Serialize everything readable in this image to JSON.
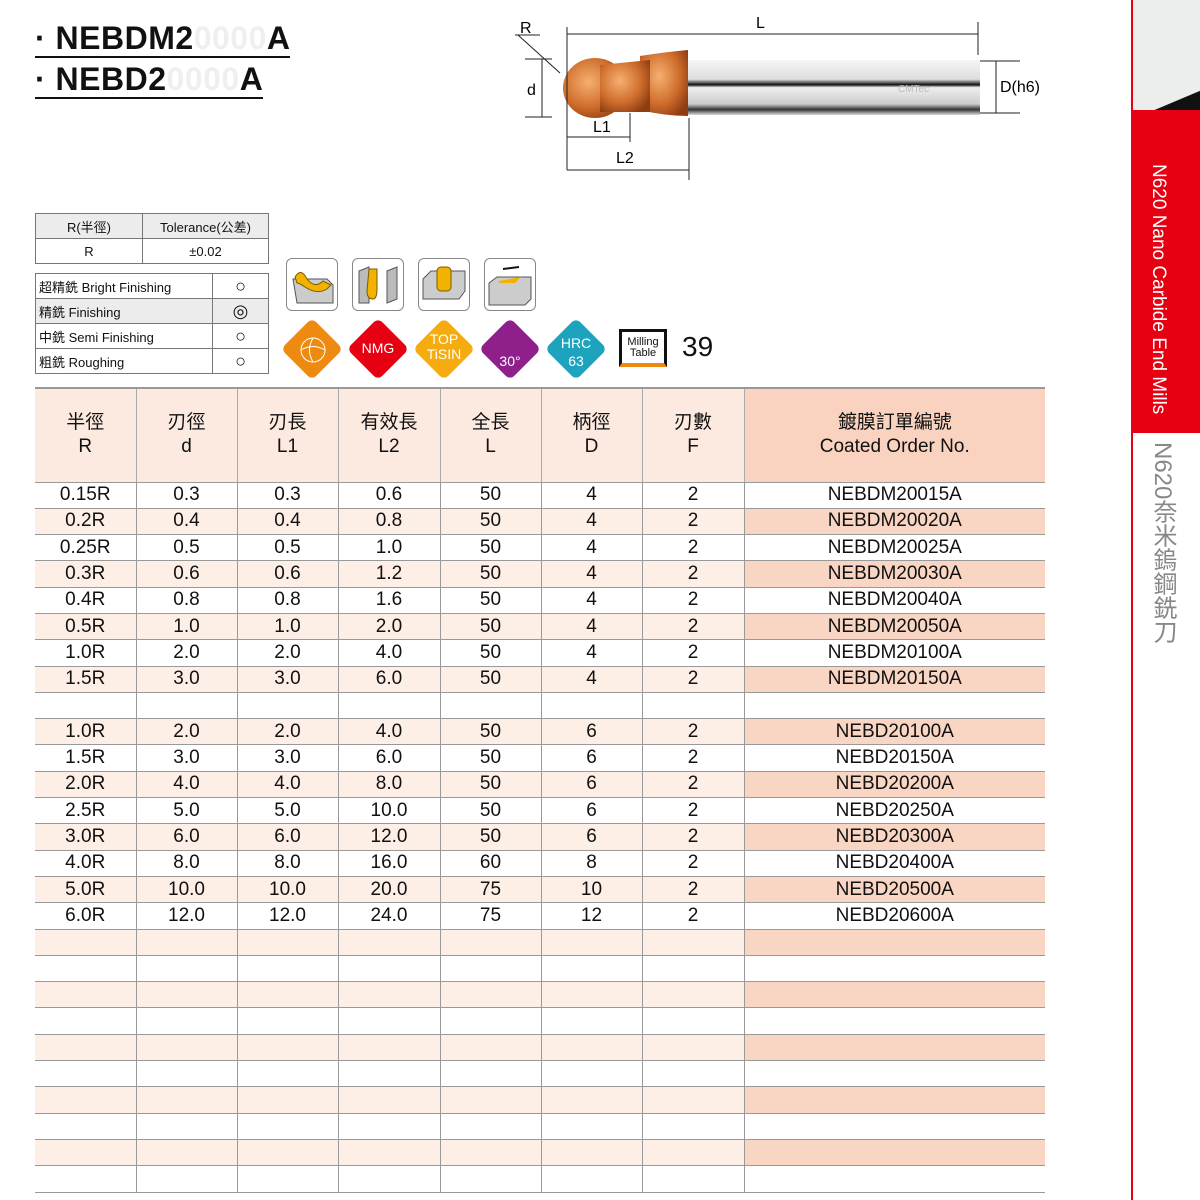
{
  "titles": [
    {
      "prefix": "· NEBDM2",
      "ghost": "0000",
      "suffix": "A"
    },
    {
      "prefix": "· NEBD2",
      "ghost": "0000",
      "suffix": "A"
    }
  ],
  "diagram": {
    "R": "R",
    "L": "L",
    "d": "d",
    "D": "D(h6)",
    "L1": "L1",
    "L2": "L2",
    "brand": "CMTec"
  },
  "tolerance": {
    "headers": [
      "R(半徑)",
      "Tolerance(公差)"
    ],
    "row": [
      "R",
      "±0.02"
    ]
  },
  "finishing": [
    {
      "label": "超精銑 Bright Finishing",
      "symbol": "○",
      "selected": false
    },
    {
      "label": "精銑 Finishing",
      "symbol": "◎",
      "selected": true
    },
    {
      "label": "中銑 Semi Finishing",
      "symbol": "○",
      "selected": false
    },
    {
      "label": "粗銑 Roughing",
      "symbol": "○",
      "selected": false
    }
  ],
  "badges": {
    "nmg": "NMG",
    "coating": [
      "TOP",
      "TiSIN"
    ],
    "helix": "30°",
    "hrc": [
      "HRC",
      "63"
    ],
    "milling": [
      "Milling",
      "Table"
    ],
    "colors": {
      "orange": "#ee8a10",
      "red": "#e60012",
      "yellow": "#f6ac10",
      "purple": "#8f1f8a",
      "teal": "#1ea3bf"
    }
  },
  "page_number": "39",
  "table": {
    "headers": [
      [
        "半徑",
        "R"
      ],
      [
        "刃徑",
        "d"
      ],
      [
        "刃長",
        "L1"
      ],
      [
        "有效長",
        "L2"
      ],
      [
        "全長",
        "L"
      ],
      [
        "柄徑",
        "D"
      ],
      [
        "刃數",
        "F"
      ],
      [
        "鍍膜訂單編號",
        "Coated Order No."
      ]
    ],
    "rows": [
      [
        "0.15R",
        "0.3",
        "0.3",
        "0.6",
        "50",
        "4",
        "2",
        "NEBDM20015A"
      ],
      [
        "0.2R",
        "0.4",
        "0.4",
        "0.8",
        "50",
        "4",
        "2",
        "NEBDM20020A"
      ],
      [
        "0.25R",
        "0.5",
        "0.5",
        "1.0",
        "50",
        "4",
        "2",
        "NEBDM20025A"
      ],
      [
        "0.3R",
        "0.6",
        "0.6",
        "1.2",
        "50",
        "4",
        "2",
        "NEBDM20030A"
      ],
      [
        "0.4R",
        "0.8",
        "0.8",
        "1.6",
        "50",
        "4",
        "2",
        "NEBDM20040A"
      ],
      [
        "0.5R",
        "1.0",
        "1.0",
        "2.0",
        "50",
        "4",
        "2",
        "NEBDM20050A"
      ],
      [
        "1.0R",
        "2.0",
        "2.0",
        "4.0",
        "50",
        "4",
        "2",
        "NEBDM20100A"
      ],
      [
        "1.5R",
        "3.0",
        "3.0",
        "6.0",
        "50",
        "4",
        "2",
        "NEBDM20150A"
      ],
      [
        "",
        "",
        "",
        "",
        "",
        "",
        "",
        ""
      ],
      [
        "1.0R",
        "2.0",
        "2.0",
        "4.0",
        "50",
        "6",
        "2",
        "NEBD20100A"
      ],
      [
        "1.5R",
        "3.0",
        "3.0",
        "6.0",
        "50",
        "6",
        "2",
        "NEBD20150A"
      ],
      [
        "2.0R",
        "4.0",
        "4.0",
        "8.0",
        "50",
        "6",
        "2",
        "NEBD20200A"
      ],
      [
        "2.5R",
        "5.0",
        "5.0",
        "10.0",
        "50",
        "6",
        "2",
        "NEBD20250A"
      ],
      [
        "3.0R",
        "6.0",
        "6.0",
        "12.0",
        "50",
        "6",
        "2",
        "NEBD20300A"
      ],
      [
        "4.0R",
        "8.0",
        "8.0",
        "16.0",
        "60",
        "8",
        "2",
        "NEBD20400A"
      ],
      [
        "5.0R",
        "10.0",
        "10.0",
        "20.0",
        "75",
        "10",
        "2",
        "NEBD20500A"
      ],
      [
        "6.0R",
        "12.0",
        "12.0",
        "24.0",
        "75",
        "12",
        "2",
        "NEBD20600A"
      ]
    ]
  },
  "side": {
    "en": "N620 Nano Carbide End Mills",
    "zh": "N620奈米鎢鋼銑刀",
    "accent": "#e60012"
  }
}
